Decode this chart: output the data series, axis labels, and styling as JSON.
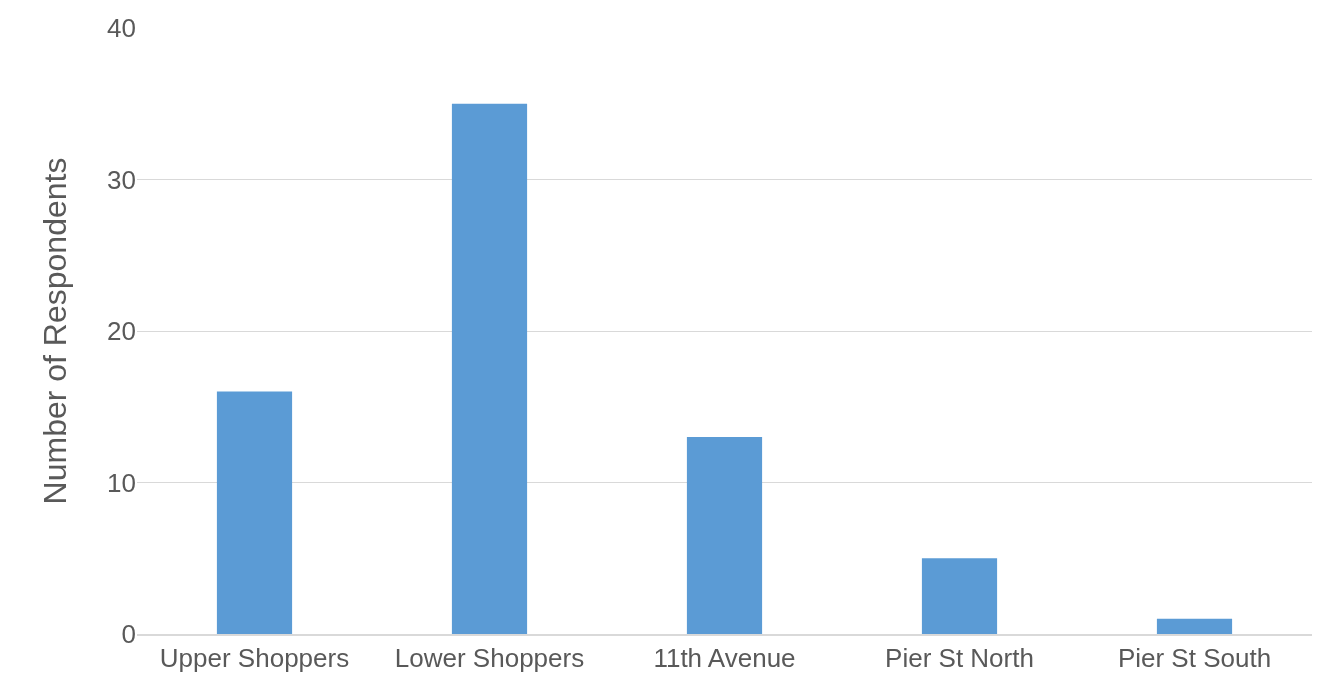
{
  "chart_data": {
    "type": "bar",
    "ylabel": "Number of Respondents",
    "categories": [
      "Upper Shoppers",
      "Lower Shoppers",
      "11th Avenue",
      "Pier St North",
      "Pier St South"
    ],
    "values": [
      16,
      35,
      13,
      5,
      1
    ],
    "color": "#5b9bd5",
    "ylim": [
      0,
      40
    ],
    "yticks": [
      0,
      10,
      20,
      30,
      40
    ],
    "grid": "y"
  }
}
